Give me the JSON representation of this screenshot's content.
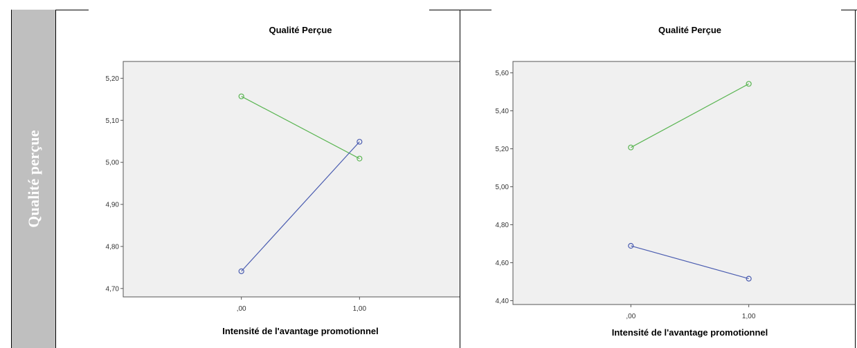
{
  "row_label": "Qualité perçue",
  "chart_data": [
    {
      "type": "line",
      "title": "Qualité Perçue",
      "xlabel": "Intensité de l'avantage promotionnel",
      "ylabel": "",
      "categories": [
        ",00",
        "1,00"
      ],
      "ylim": [
        4.68,
        5.24
      ],
      "yticks": [
        4.7,
        4.8,
        4.9,
        5.0,
        5.1,
        5.2
      ],
      "ytick_labels": [
        "4,70",
        "4,80",
        "4,90",
        "5,00",
        "5,10",
        "5,20"
      ],
      "grid": false,
      "series": [
        {
          "color": "#5ab552",
          "values": [
            5.157,
            5.009
          ]
        },
        {
          "color": "#4a5cb0",
          "values": [
            4.741,
            5.049
          ]
        }
      ]
    },
    {
      "type": "line",
      "title": "Qualité Perçue",
      "xlabel": "Intensité de l'avantage promotionnel",
      "ylabel": "",
      "categories": [
        ",00",
        "1,00"
      ],
      "ylim": [
        4.38,
        5.66
      ],
      "yticks": [
        4.4,
        4.6,
        4.8,
        5.0,
        5.2,
        5.4,
        5.6
      ],
      "ytick_labels": [
        "4,40",
        "4,60",
        "4,80",
        "5,00",
        "5,20",
        "5,40",
        "5,60"
      ],
      "grid": false,
      "series": [
        {
          "color": "#5ab552",
          "values": [
            5.207,
            5.542
          ]
        },
        {
          "color": "#4a5cb0",
          "values": [
            4.689,
            4.516
          ]
        }
      ]
    }
  ]
}
